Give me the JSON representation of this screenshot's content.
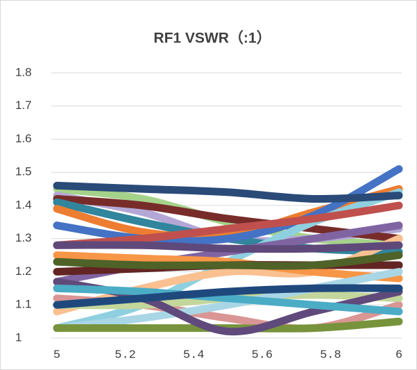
{
  "chart_data": {
    "type": "line",
    "title": "RF1 VSWR（:1）",
    "x": [
      5,
      5.25,
      5.5,
      5.75,
      6
    ],
    "xlim": [
      5,
      6
    ],
    "xticks": [
      5,
      5.2,
      5.4,
      5.6,
      5.8,
      6
    ],
    "ylim": [
      1,
      1.8
    ],
    "yticks": [
      1,
      1.1,
      1.2,
      1.3,
      1.4,
      1.5,
      1.6,
      1.7,
      1.8
    ],
    "grid": true,
    "series": [
      {
        "color": "#a5d28a",
        "values": [
          1.45,
          1.42,
          1.35,
          1.3,
          1.28
        ]
      },
      {
        "color": "#b4a7d6",
        "values": [
          1.43,
          1.38,
          1.3,
          1.3,
          1.33
        ]
      },
      {
        "color": "#772c2a",
        "values": [
          1.42,
          1.4,
          1.36,
          1.33,
          1.3
        ]
      },
      {
        "color": "#31859c",
        "values": [
          1.41,
          1.35,
          1.3,
          1.27,
          1.26
        ]
      },
      {
        "color": "#ed7d31",
        "values": [
          1.39,
          1.32,
          1.31,
          1.38,
          1.45
        ]
      },
      {
        "color": "#4472c4",
        "values": [
          1.34,
          1.3,
          1.3,
          1.37,
          1.51
        ]
      },
      {
        "color": "#8fd0e0",
        "values": [
          1.03,
          1.1,
          1.23,
          1.35,
          1.44
        ]
      },
      {
        "color": "#c0504d",
        "values": [
          1.28,
          1.3,
          1.33,
          1.36,
          1.4
        ]
      },
      {
        "color": "#8064a2",
        "values": [
          1.17,
          1.22,
          1.26,
          1.3,
          1.34
        ]
      },
      {
        "color": "#fac090",
        "values": [
          1.08,
          1.15,
          1.2,
          1.2,
          1.3
        ]
      },
      {
        "color": "#f79646",
        "values": [
          1.25,
          1.24,
          1.23,
          1.2,
          1.18
        ]
      },
      {
        "color": "#632523",
        "values": [
          1.2,
          1.21,
          1.22,
          1.22,
          1.22
        ]
      },
      {
        "color": "#4f6228",
        "values": [
          1.23,
          1.22,
          1.22,
          1.22,
          1.25
        ]
      },
      {
        "color": "#5f497a",
        "values": [
          1.28,
          1.28,
          1.27,
          1.27,
          1.28
        ]
      },
      {
        "color": "#d99694",
        "values": [
          1.12,
          1.1,
          1.06,
          1.03,
          1.1
        ]
      },
      {
        "color": "#c3d69b",
        "values": [
          1.1,
          1.1,
          1.12,
          1.13,
          1.12
        ]
      },
      {
        "color": "#a9d6e5",
        "values": [
          1.03,
          1.06,
          1.1,
          1.15,
          1.2
        ]
      },
      {
        "color": "#77933c",
        "values": [
          1.03,
          1.03,
          1.03,
          1.03,
          1.05
        ]
      },
      {
        "color": "#604a7b",
        "values": [
          1.17,
          1.12,
          1.02,
          1.08,
          1.14
        ]
      },
      {
        "color": "#4bacc6",
        "values": [
          1.15,
          1.14,
          1.12,
          1.1,
          1.08
        ]
      },
      {
        "color": "#1f497d",
        "values": [
          1.1,
          1.12,
          1.14,
          1.15,
          1.15
        ]
      },
      {
        "color": "#2a4a78",
        "values": [
          1.46,
          1.45,
          1.44,
          1.42,
          1.43
        ]
      }
    ]
  }
}
